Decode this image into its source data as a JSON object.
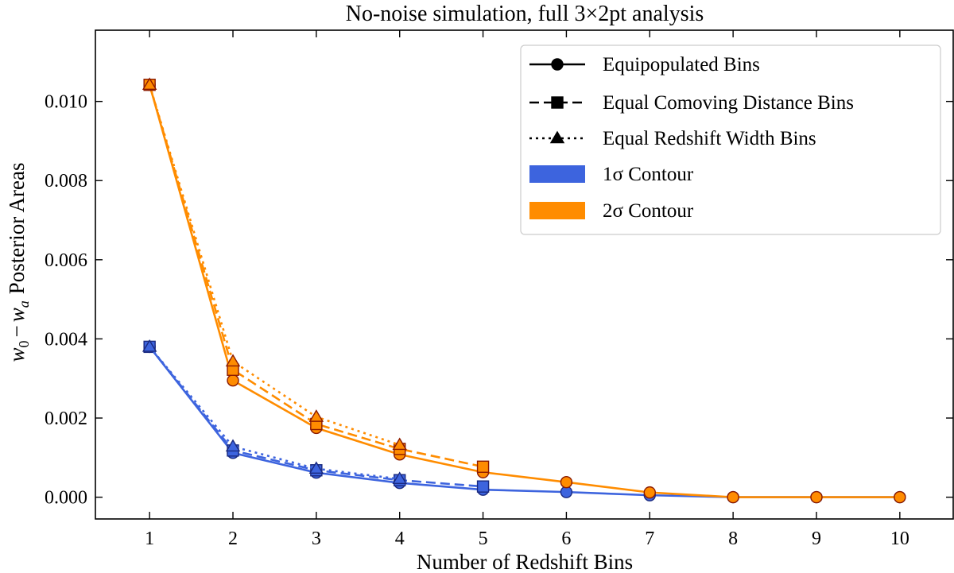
{
  "chart_data": {
    "type": "line",
    "title": "No-noise simulation, full 3×2pt analysis",
    "xlabel": "Number of Redshift Bins",
    "ylabel": "Posterior Areas",
    "ylabel_math": {
      "w0": "w",
      "w0_sub": "0",
      "minus": "−",
      "wa": "w",
      "wa_sub": "a"
    },
    "xlim": [
      0.35,
      10.65
    ],
    "ylim": [
      -0.00055,
      0.0118
    ],
    "xticks": [
      1,
      2,
      3,
      4,
      5,
      6,
      7,
      8,
      9,
      10
    ],
    "yticks": [
      0.0,
      0.002,
      0.004,
      0.006,
      0.008,
      0.01
    ],
    "ytick_labels": [
      "0.000",
      "0.002",
      "0.004",
      "0.006",
      "0.008",
      "0.010"
    ],
    "grid": false,
    "legend_position": "top-right",
    "legend": [
      {
        "label": "Equipopulated Bins",
        "style": "solid",
        "marker": "circle"
      },
      {
        "label": "Equal Comoving Distance Bins",
        "style": "dashed",
        "marker": "square"
      },
      {
        "label": "Equal Redshift Width Bins",
        "style": "dotted",
        "marker": "triangle"
      },
      {
        "label": "1σ Contour",
        "patch_color": "#3d64de"
      },
      {
        "label": "2σ Contour",
        "patch_color": "#ff8c00"
      }
    ],
    "colors": {
      "blue": "#3d64de",
      "orange": "#ff8c00",
      "marker_edge_blue": "#1a2a80",
      "marker_edge_orange": "#8b1a00"
    },
    "series": [
      {
        "contour": "1σ",
        "binning": "Equipopulated Bins",
        "style": "solid",
        "marker": "circle",
        "x": [
          1,
          2,
          3,
          4,
          5,
          6,
          7,
          8,
          9,
          10
        ],
        "y": [
          0.0038,
          0.00112,
          0.00062,
          0.00036,
          0.00019,
          0.00013,
          5e-05,
          0.0,
          0.0,
          0.0
        ]
      },
      {
        "contour": "1σ",
        "binning": "Equal Comoving Distance Bins",
        "style": "dashed",
        "marker": "square",
        "x": [
          1,
          2,
          3,
          4,
          5
        ],
        "y": [
          0.0038,
          0.00118,
          0.00068,
          0.00043,
          0.00027
        ]
      },
      {
        "contour": "1σ",
        "binning": "Equal Redshift Width Bins",
        "style": "dotted",
        "marker": "triangle",
        "x": [
          1,
          2,
          3,
          4
        ],
        "y": [
          0.0038,
          0.00128,
          0.00072,
          0.00046
        ]
      },
      {
        "contour": "2σ",
        "binning": "Equipopulated Bins",
        "style": "solid",
        "marker": "circle",
        "x": [
          1,
          2,
          3,
          4,
          5,
          6,
          7,
          8,
          9,
          10
        ],
        "y": [
          0.01042,
          0.00295,
          0.00175,
          0.00108,
          0.00063,
          0.00038,
          0.00012,
          0.0,
          0.0,
          0.0
        ]
      },
      {
        "contour": "2σ",
        "binning": "Equal Comoving Distance Bins",
        "style": "dashed",
        "marker": "square",
        "x": [
          1,
          2,
          3,
          4,
          5
        ],
        "y": [
          0.01042,
          0.00322,
          0.00185,
          0.00122,
          0.00077
        ]
      },
      {
        "contour": "2σ",
        "binning": "Equal Redshift Width Bins",
        "style": "dotted",
        "marker": "triangle",
        "x": [
          1,
          2,
          3,
          4
        ],
        "y": [
          0.01042,
          0.00343,
          0.00203,
          0.00132
        ]
      }
    ]
  }
}
